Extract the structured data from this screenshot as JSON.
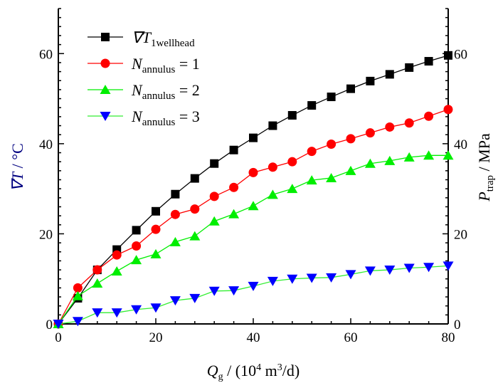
{
  "chart_data": {
    "type": "line",
    "xlabel": {
      "main": "Q",
      "sub": "g",
      "rest": " / (10",
      "sup": "4",
      "rest2": " m",
      "sup2": "3",
      "rest3": "/d)"
    },
    "ylabel_left": {
      "main": "∇T",
      "rest": " / °C"
    },
    "ylabel_right": {
      "main": "P",
      "sub": "trap",
      "rest": " / MPa"
    },
    "xlim": [
      0,
      80
    ],
    "ylim_left": [
      0,
      70
    ],
    "ylim_right": [
      0,
      70
    ],
    "x_ticks": [
      "0",
      "20",
      "40",
      "60",
      "80"
    ],
    "y_ticks_left": [
      "0",
      "20",
      "40",
      "60"
    ],
    "y_ticks_right": [
      "0",
      "20",
      "40",
      "60"
    ],
    "grid": false,
    "legend_placement": "top-left",
    "x": [
      0,
      4,
      8,
      12,
      16,
      20,
      24,
      28,
      32,
      36,
      40,
      44,
      48,
      52,
      56,
      60,
      64,
      68,
      72,
      76,
      80
    ],
    "series": [
      {
        "name": "∇T",
        "name_sub": "1wellhead",
        "color": "#000000",
        "line_color": "#000000",
        "marker": "square",
        "values": [
          0,
          5.7,
          12,
          16.5,
          20.8,
          25,
          28.8,
          32.3,
          35.6,
          38.6,
          41.3,
          44,
          46.3,
          48.5,
          50.4,
          52.2,
          53.9,
          55.4,
          56.9,
          58.3,
          59.6
        ]
      },
      {
        "name": "N",
        "name_sub": "annulus",
        "name_rest": " = 1",
        "color": "#ff0000",
        "line_color": "#ff0000",
        "marker": "circle",
        "values": [
          0,
          8,
          12,
          15.3,
          17.3,
          21,
          24.3,
          25.5,
          28.3,
          30.3,
          33.6,
          34.8,
          36,
          38.3,
          39.9,
          41.1,
          42.4,
          43.7,
          44.6,
          46.1,
          47.6
        ]
      },
      {
        "name": "N",
        "name_sub": "annulus",
        "name_rest": " = 2",
        "color": "#00ee00",
        "line_color": "#00ee00",
        "marker": "triangle-up",
        "values": [
          0,
          6.2,
          9,
          11.7,
          14.2,
          15.5,
          18.2,
          19.5,
          22.8,
          24.4,
          26.2,
          28.7,
          30,
          31.9,
          32.4,
          34,
          35.6,
          36.2,
          37,
          37.4,
          37.4
        ]
      },
      {
        "name": "N",
        "name_sub": "annulus",
        "name_rest": " = 3",
        "color": "#0000ff",
        "line_color": "#33ee33",
        "marker": "triangle-down",
        "values": [
          0,
          0.6,
          2.5,
          2.5,
          3.2,
          3.6,
          5.2,
          5.7,
          7.3,
          7.4,
          8.4,
          9.5,
          10,
          10.2,
          10.3,
          11,
          11.8,
          12,
          12.4,
          12.6,
          12.9
        ]
      }
    ]
  }
}
